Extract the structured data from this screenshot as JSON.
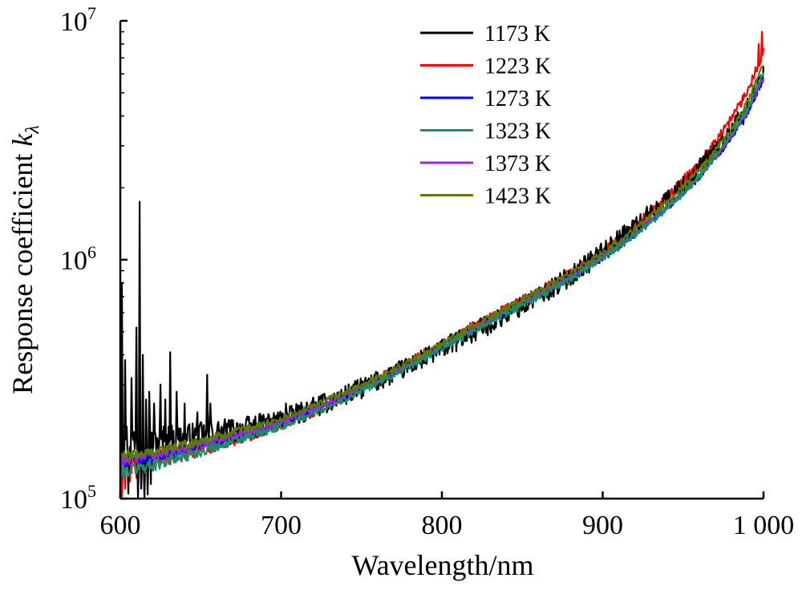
{
  "chart_data": {
    "type": "line",
    "title": "",
    "xlabel": "Wavelength/nm",
    "ylabel_main": "Response coefficient ",
    "ylabel_symbol": "k",
    "ylabel_subscript": "λ",
    "y_scale": "log",
    "xlim": [
      600,
      1000
    ],
    "ylim": [
      100000,
      10000000
    ],
    "x_ticks": [
      600,
      700,
      800,
      900,
      1000
    ],
    "x_tick_labels": [
      "600",
      "700",
      "800",
      "900",
      "1 000"
    ],
    "y_ticks": [
      {
        "value": 100000,
        "base": "10",
        "exp": "5"
      },
      {
        "value": 1000000,
        "base": "10",
        "exp": "6"
      },
      {
        "value": 10000000,
        "base": "10",
        "exp": "7"
      }
    ],
    "grid": false,
    "legend_position": "top-right",
    "x": [
      600,
      610,
      620,
      630,
      640,
      650,
      660,
      680,
      700,
      720,
      740,
      760,
      780,
      800,
      820,
      840,
      860,
      880,
      900,
      920,
      940,
      950,
      960,
      970,
      980,
      990,
      1000
    ],
    "series": [
      {
        "name": "1173 K",
        "color": "#000000",
        "noise": 0.1,
        "values": [
          180000,
          170000,
          172000,
          175000,
          178000,
          182000,
          188000,
          198000,
          215000,
          240000,
          272000,
          312000,
          360000,
          425000,
          500000,
          590000,
          700000,
          860000,
          1080000,
          1380000,
          1780000,
          2050000,
          2400000,
          2850000,
          3450000,
          4300000,
          5900000
        ],
        "spikes": [
          [
            601,
            800000
          ],
          [
            603,
            380000
          ],
          [
            605,
            420000
          ],
          [
            607,
            320000
          ],
          [
            610,
            520000
          ],
          [
            612,
            1750000
          ],
          [
            614,
            400000
          ],
          [
            616,
            260000
          ],
          [
            618,
            280000
          ],
          [
            621,
            250000
          ],
          [
            625,
            300000
          ],
          [
            628,
            260000
          ],
          [
            631,
            410000
          ],
          [
            635,
            280000
          ],
          [
            640,
            250000
          ],
          [
            648,
            230000
          ],
          [
            654,
            330000
          ],
          [
            656,
            250000
          ],
          [
            703,
            250000
          ],
          [
            720,
            265000
          ]
        ],
        "dips": [
          [
            605,
            105000
          ],
          [
            611,
            100000
          ],
          [
            613,
            110000
          ],
          [
            615,
            100000
          ],
          [
            617,
            104000
          ],
          [
            619,
            115000
          ]
        ]
      },
      {
        "name": "1223 K",
        "color": "#ff0000",
        "noise": 0.05,
        "values": [
          138000,
          140000,
          145000,
          150000,
          156000,
          163000,
          170000,
          185000,
          203000,
          232000,
          268000,
          315000,
          372000,
          445000,
          530000,
          625000,
          735000,
          880000,
          1080000,
          1380000,
          1820000,
          2150000,
          2550000,
          3100000,
          3900000,
          5100000,
          7500000
        ],
        "spikes": [
          [
            999,
            9000000
          ],
          [
            997,
            8000000
          ]
        ],
        "dips": [
          [
            601,
            102000
          ],
          [
            603,
            110000
          ],
          [
            606,
            118000
          ],
          [
            610,
            122000
          ]
        ]
      },
      {
        "name": "1273 K",
        "color": "#0000ff",
        "noise": 0.025,
        "values": [
          140000,
          145000,
          149000,
          154000,
          160000,
          166000,
          173000,
          188000,
          206000,
          234000,
          268000,
          310000,
          362000,
          430000,
          510000,
          605000,
          710000,
          840000,
          1020000,
          1280000,
          1640000,
          1890000,
          2200000,
          2650000,
          3250000,
          4100000,
          5700000
        ],
        "spikes": [],
        "dips": []
      },
      {
        "name": "1323 K",
        "color": "#1b8f6a",
        "noise": 0.035,
        "values": [
          128000,
          134000,
          139000,
          145000,
          151000,
          158000,
          166000,
          181000,
          200000,
          228000,
          262000,
          305000,
          358000,
          425000,
          505000,
          597000,
          700000,
          832000,
          1010000,
          1270000,
          1640000,
          1900000,
          2230000,
          2700000,
          3350000,
          4300000,
          6100000
        ],
        "spikes": [],
        "dips": []
      },
      {
        "name": "1373 K",
        "color": "#a020f0",
        "noise": 0.025,
        "values": [
          145000,
          148000,
          152000,
          157000,
          163000,
          169000,
          176000,
          191000,
          209000,
          237000,
          271000,
          313000,
          366000,
          435000,
          515000,
          610000,
          715000,
          845000,
          1030000,
          1290000,
          1660000,
          1910000,
          2230000,
          2680000,
          3300000,
          4150000,
          5800000
        ],
        "spikes": [],
        "dips": []
      },
      {
        "name": "1423 K",
        "color": "#5a7d00",
        "noise": 0.03,
        "values": [
          150000,
          153000,
          157000,
          162000,
          168000,
          175000,
          182000,
          197000,
          216000,
          244000,
          279000,
          322000,
          376000,
          447000,
          530000,
          628000,
          740000,
          880000,
          1070000,
          1350000,
          1740000,
          2020000,
          2370000,
          2860000,
          3550000,
          4550000,
          6700000
        ],
        "spikes": [],
        "dips": []
      }
    ]
  }
}
